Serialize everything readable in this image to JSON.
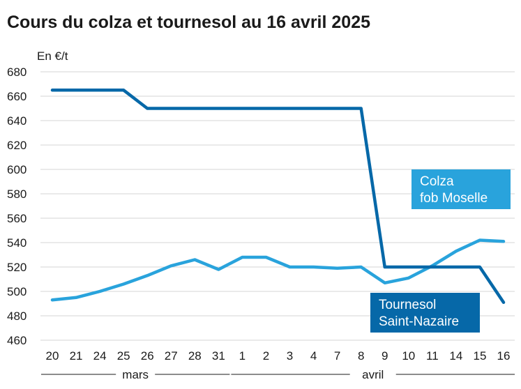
{
  "title": "Cours du colza et tournesol au 16 avril 2025",
  "chart_data": {
    "type": "line",
    "title": "Cours du colza et tournesol au 16 avril 2025",
    "ylabel": "En €/t",
    "ylim": [
      460,
      680
    ],
    "yticks": [
      460,
      480,
      500,
      520,
      540,
      560,
      580,
      600,
      620,
      640,
      660,
      680
    ],
    "grid": true,
    "categories": [
      "20",
      "21",
      "24",
      "25",
      "26",
      "27",
      "28",
      "31",
      "1",
      "2",
      "3",
      "4",
      "7",
      "8",
      "9",
      "10",
      "11",
      "14",
      "15",
      "16"
    ],
    "groups": [
      {
        "label": "mars",
        "from": 0,
        "to": 7
      },
      {
        "label": "avril",
        "from": 8,
        "to": 19
      }
    ],
    "series": [
      {
        "name": "Colza fob Moselle",
        "label_lines": [
          "Colza",
          "fob Moselle"
        ],
        "color": "#29a3dc",
        "values": [
          493,
          495,
          500,
          506,
          513,
          521,
          526,
          518,
          528,
          528,
          520,
          520,
          519,
          520,
          507,
          511,
          521,
          533,
          542,
          541
        ]
      },
      {
        "name": "Tournesol Saint-Nazaire",
        "label_lines": [
          "Tournesol",
          "Saint-Nazaire"
        ],
        "color": "#0668a8",
        "values": [
          665,
          665,
          665,
          665,
          650,
          650,
          650,
          650,
          650,
          650,
          650,
          650,
          650,
          650,
          520,
          520,
          520,
          520,
          520,
          491
        ]
      }
    ]
  }
}
